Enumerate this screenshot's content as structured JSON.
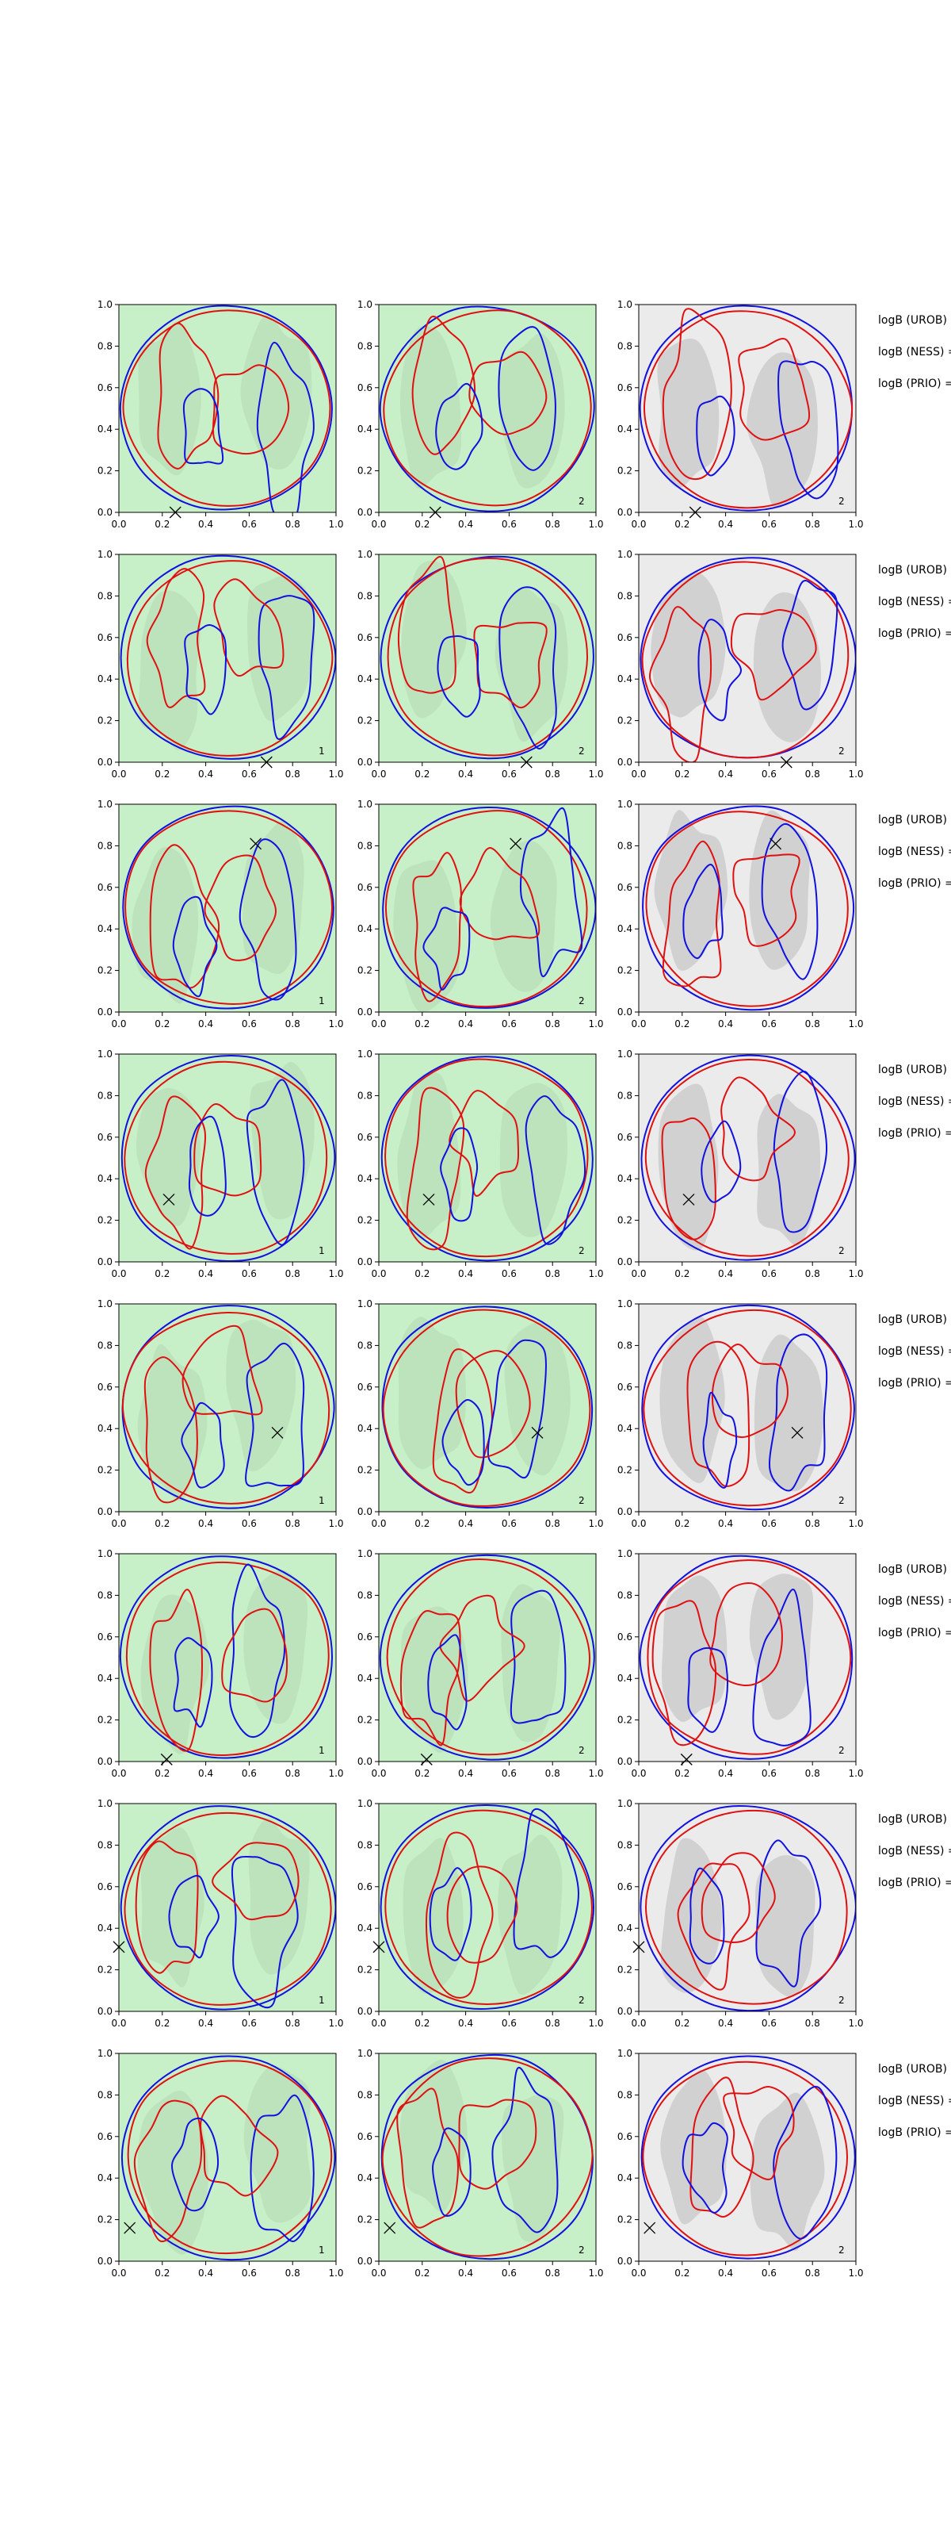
{
  "chart_data": {
    "type": "contour",
    "layout": {
      "rows": 8,
      "cols": 3
    },
    "axes": {
      "xlim": [
        0,
        1
      ],
      "ylim": [
        0,
        1
      ],
      "xticks": [
        "0.0",
        "0.2",
        "0.4",
        "0.6",
        "0.8",
        "1.0"
      ],
      "yticks": [
        "0.0",
        "0.2",
        "0.4",
        "0.6",
        "0.8",
        "1.0"
      ]
    },
    "colors": {
      "blue_contour": "#1010e0",
      "red_contour": "#e01010",
      "green_fill": "#c8f0c8",
      "gray_fill": "#c8c8c8",
      "gray_background": "#ebebeb"
    },
    "side_labels": [
      "logB (UROB) =",
      "logB (NESS) =",
      "logB (PRIO) ="
    ],
    "rows": [
      {
        "marker": [
          0.26,
          0.0
        ],
        "panel_labels": [
          "",
          "2",
          "2"
        ],
        "seed": 11
      },
      {
        "marker": [
          0.68,
          0.0
        ],
        "panel_labels": [
          "1",
          "2",
          "2"
        ],
        "seed": 23
      },
      {
        "marker": [
          0.63,
          0.81
        ],
        "panel_labels": [
          "1",
          "2",
          ""
        ],
        "seed": 37
      },
      {
        "marker": [
          0.23,
          0.3
        ],
        "panel_labels": [
          "1",
          "2",
          "2"
        ],
        "seed": 41
      },
      {
        "marker": [
          0.73,
          0.38
        ],
        "panel_labels": [
          "1",
          "2",
          "2"
        ],
        "seed": 53
      },
      {
        "marker": [
          0.22,
          0.01
        ],
        "panel_labels": [
          "1",
          "2",
          "2"
        ],
        "seed": 67
      },
      {
        "marker": [
          0.0,
          0.31
        ],
        "panel_labels": [
          "1",
          "2",
          "2"
        ],
        "seed": 79
      },
      {
        "marker": [
          0.05,
          0.16
        ],
        "panel_labels": [
          "1",
          "2",
          "2"
        ],
        "seed": 97
      }
    ]
  }
}
